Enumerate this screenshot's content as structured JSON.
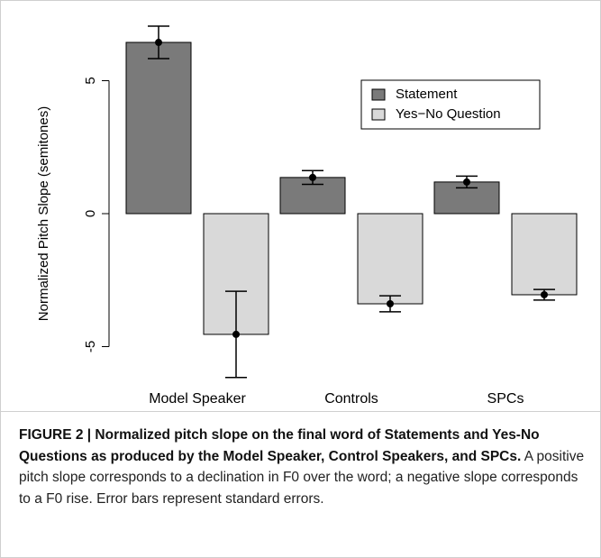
{
  "chart_data": {
    "type": "bar",
    "ylabel": "Normalized Pitch Slope (semitones)",
    "categories": [
      "Model Speaker",
      "Controls",
      "SPCs"
    ],
    "series": [
      {
        "name": "Statement",
        "color": "#7a7a7a",
        "values": [
          6.44,
          1.36,
          1.19
        ],
        "errors": [
          0.61,
          0.26,
          0.22
        ]
      },
      {
        "name": "Yes−No Question",
        "color": "#d9d9d9",
        "values": [
          -4.54,
          -3.39,
          -3.05
        ],
        "errors": [
          1.62,
          0.3,
          0.2
        ]
      }
    ],
    "ylim": [
      -6.6,
      7.4
    ],
    "yticks": [
      -5,
      0,
      5
    ],
    "grid": false,
    "legend": "upper right"
  },
  "caption": {
    "label": "FIGURE 2 | Normalized pitch slope on the final word of Statements and Yes-No Questions as produced by the Model Speaker, Control Speakers, and SPCs.",
    "text": "A positive pitch slope corresponds to a declination in F0 over the word; a negative slope corresponds to a F0 rise. Error bars represent standard errors."
  }
}
